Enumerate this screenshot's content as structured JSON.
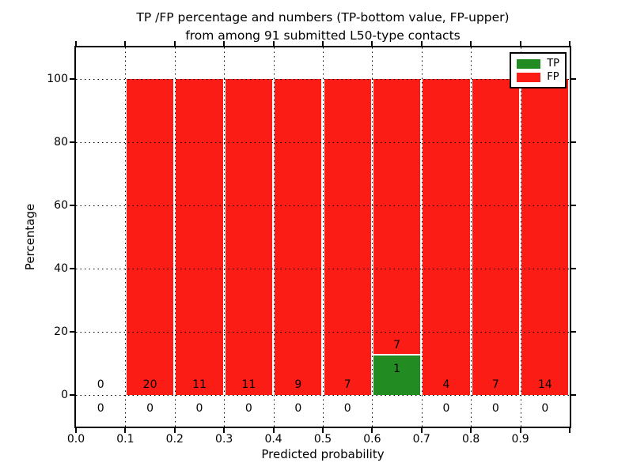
{
  "figure": {
    "title_line1": "TP /FP percentage and numbers (TP-bottom value, FP-upper)",
    "title_line2": "from among 91 submitted L50-type contacts",
    "xlabel": "Predicted probability",
    "ylabel": "Percentage"
  },
  "legend": {
    "items": [
      {
        "label": "TP",
        "color": "#228b22"
      },
      {
        "label": "FP",
        "color": "#fb1d15"
      }
    ]
  },
  "chart_data": {
    "type": "bar",
    "stacked": true,
    "title": "TP /FP percentage and numbers (TP-bottom value, FP-upper)\nfrom among 91 submitted L50-type contacts",
    "xlabel": "Predicted probability",
    "ylabel": "Percentage",
    "total_contacts": 91,
    "xlim": [
      0.0,
      1.0
    ],
    "ylim": [
      -10,
      110
    ],
    "yticks": [
      0,
      20,
      40,
      60,
      80,
      100
    ],
    "xtick_labels": [
      "0.0",
      "0.1",
      "0.2",
      "0.3",
      "0.4",
      "0.5",
      "0.6",
      "0.7",
      "0.8",
      "0.9"
    ],
    "grid": true,
    "legend_position": "upper right",
    "categories": [
      "0.0-0.1",
      "0.1-0.2",
      "0.2-0.3",
      "0.3-0.4",
      "0.4-0.5",
      "0.5-0.6",
      "0.6-0.7",
      "0.7-0.8",
      "0.8-0.9",
      "0.9-1.0"
    ],
    "series": [
      {
        "name": "TP",
        "color": "#228b22",
        "counts": [
          0,
          0,
          0,
          0,
          0,
          0,
          1,
          0,
          0,
          0
        ],
        "percentages": [
          0,
          0,
          0,
          0,
          0,
          0,
          12.5,
          0,
          0,
          0
        ]
      },
      {
        "name": "FP",
        "color": "#fb1d15",
        "counts": [
          0,
          20,
          11,
          11,
          9,
          7,
          7,
          4,
          7,
          14
        ],
        "percentages": [
          0,
          100,
          100,
          100,
          100,
          100,
          87.5,
          100,
          100,
          100
        ]
      }
    ]
  }
}
